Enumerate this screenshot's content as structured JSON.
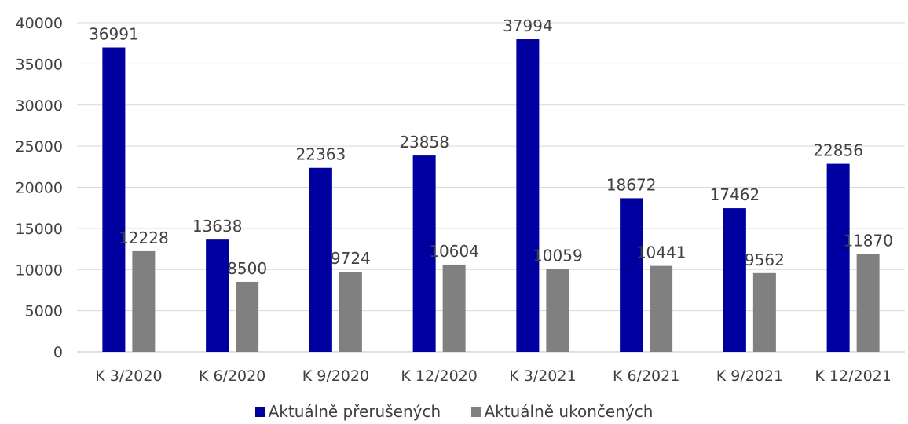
{
  "chart_data": {
    "type": "bar",
    "title": "",
    "xlabel": "",
    "ylabel": "",
    "ylim": [
      0,
      40000
    ],
    "yticks": [
      0,
      5000,
      10000,
      15000,
      20000,
      25000,
      30000,
      35000,
      40000
    ],
    "grid": true,
    "legend_position": "bottom",
    "categories": [
      "K 3/2020",
      "K 6/2020",
      "K 9/2020",
      "K 12/2020",
      "K 3/2021",
      "K 6/2021",
      "K 9/2021",
      "K 12/2021"
    ],
    "series": [
      {
        "name": "Aktuálně přerušených",
        "color": "#0000a0",
        "values": [
          36991,
          13638,
          22363,
          23858,
          37994,
          18672,
          17462,
          22856
        ]
      },
      {
        "name": "Aktuálně ukončených",
        "color": "#808080",
        "values": [
          12228,
          8500,
          9724,
          10604,
          10059,
          10441,
          9562,
          11870
        ]
      }
    ]
  }
}
